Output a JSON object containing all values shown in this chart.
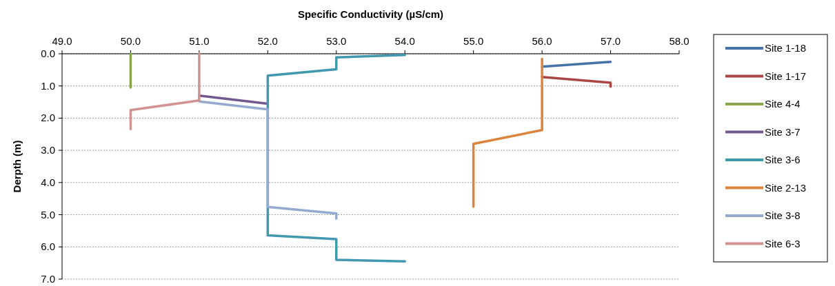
{
  "chart_data": {
    "type": "line",
    "xlabel": "Specific Conductivity (µS/cm)",
    "ylabel": "Derpth (m)",
    "xlim": [
      49,
      58
    ],
    "xticks": [
      {
        "value": 49,
        "label": "49.0"
      },
      {
        "value": 50,
        "label": "50.0"
      },
      {
        "value": 51,
        "label": "51.0"
      },
      {
        "value": 52,
        "label": "52.0"
      },
      {
        "value": 53,
        "label": "53.0"
      },
      {
        "value": 54,
        "label": "54.0"
      },
      {
        "value": 55,
        "label": "55.0"
      },
      {
        "value": 56,
        "label": "56.0"
      },
      {
        "value": 57,
        "label": "57.0"
      },
      {
        "value": 58,
        "label": "58.0"
      }
    ],
    "ylim": [
      7,
      0
    ],
    "yticks": [
      {
        "value": 0,
        "label": "0.0"
      },
      {
        "value": 1,
        "label": "1.0"
      },
      {
        "value": 2,
        "label": "2.0"
      },
      {
        "value": 3,
        "label": "3.0"
      },
      {
        "value": 4,
        "label": "4.0"
      },
      {
        "value": 5,
        "label": "5.0"
      },
      {
        "value": 6,
        "label": "6.0"
      },
      {
        "value": 7,
        "label": "7.0"
      }
    ],
    "grid": "y",
    "legend": "right",
    "marker": "none",
    "line_style": "solid",
    "series": [
      {
        "name": "Site 1-18",
        "color": "#4572a7",
        "x": [
          57,
          56
        ],
        "values": [
          0.25,
          0.4
        ]
      },
      {
        "name": "Site 1-17",
        "color": "#aa4643",
        "x": [
          56,
          57,
          57
        ],
        "values": [
          0.72,
          0.9,
          1.02
        ]
      },
      {
        "name": "Site 4-4",
        "color": "#89a54e",
        "x": [
          50,
          50
        ],
        "values": [
          0,
          1.05
        ]
      },
      {
        "name": "Site 3-7",
        "color": "#71588f",
        "x": [
          51,
          52
        ],
        "values": [
          1.3,
          1.55
        ]
      },
      {
        "name": "Site 3-6",
        "color": "#4198af",
        "x": [
          54,
          53,
          53,
          52,
          52,
          52,
          53,
          53,
          54
        ],
        "values": [
          0.04,
          0.11,
          0.48,
          0.68,
          5.47,
          5.64,
          5.76,
          6.4,
          6.45
        ]
      },
      {
        "name": "Site 2-13",
        "color": "#db843d",
        "x": [
          56,
          56,
          55,
          55
        ],
        "values": [
          0.16,
          2.37,
          2.8,
          4.75
        ]
      },
      {
        "name": "Site 3-8",
        "color": "#93a9cf",
        "x": [
          51,
          52,
          52,
          53,
          53
        ],
        "values": [
          1.48,
          1.73,
          4.76,
          4.96,
          5.12
        ]
      },
      {
        "name": "Site 6-3",
        "color": "#d19392",
        "x": [
          51,
          51,
          50,
          50
        ],
        "values": [
          0,
          1.45,
          1.75,
          2.34
        ]
      }
    ]
  }
}
